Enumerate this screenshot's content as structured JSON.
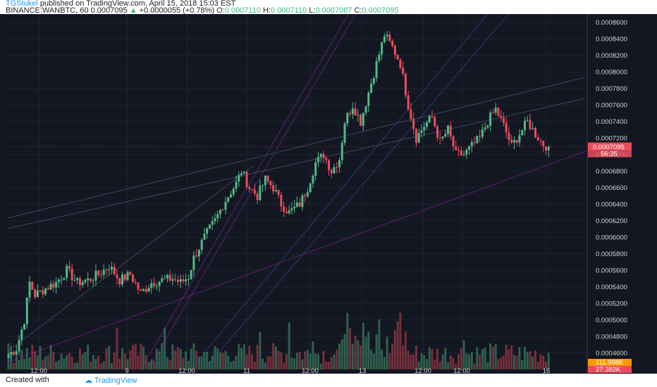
{
  "header": {
    "author": "TGStukel",
    "published_text": "published on TradingView.com, April 15, 2018 15:03 EST",
    "symbol": "BINANCE:WANBTC, 60",
    "last": "0.0007095",
    "change": "+0.0000055 (+0.78%)",
    "o_label": "O:",
    "o_value": "0.0007110",
    "h_label": "H:",
    "h_value": "0.0007110",
    "l_label": "L:",
    "l_value": "0.0007087",
    "c_label": "C:",
    "c_value": "0.0007095"
  },
  "footer": {
    "created_with": "Created with",
    "brand": "TradingView"
  },
  "colors": {
    "background": "#131722",
    "up": "#53b987",
    "down": "#eb4d5c",
    "price_tag": "#eb4d5c",
    "volume_tag": "#ff9800",
    "countdown_tag": "#eb4d5c",
    "trendline_magenta": "#9c27b0",
    "trendline_blue": "#3f51b5",
    "trendline_gray": "#5d6b8a"
  },
  "chart_data": {
    "type": "candlestick",
    "symbol": "BINANCE:WANBTC",
    "interval": "60",
    "y_tick_labels": [
      "0.0008600",
      "0.0008400",
      "0.0008200",
      "0.0008000",
      "0.0007800",
      "0.0007600",
      "0.0007400",
      "0.0007200",
      "0.0007000",
      "0.0006800",
      "0.0006600",
      "0.0006400",
      "0.0006200",
      "0.0006000",
      "0.0005800",
      "0.0005600",
      "0.0005400",
      "0.0005200",
      "0.0005000",
      "0.0004800",
      "0.0004600"
    ],
    "ylim": [
      0.00044,
      0.00087
    ],
    "x_tick_labels": [
      "12:00",
      "9",
      "12:00",
      "11",
      "12:00",
      "13",
      "12:00",
      "12:00",
      "16"
    ],
    "last_price_tag": "0.0007095",
    "countdown_tag": "56:35",
    "volume_tag": "111.998K",
    "volume_tag2": "27.382K",
    "anchors": [
      [
        0,
        0.000458
      ],
      [
        3,
        0.000465
      ],
      [
        6,
        0.0005
      ],
      [
        8,
        0.000545
      ],
      [
        10,
        0.00053
      ],
      [
        14,
        0.000538
      ],
      [
        18,
        0.000545
      ],
      [
        22,
        0.00056
      ],
      [
        26,
        0.000545
      ],
      [
        30,
        0.000548
      ],
      [
        34,
        0.000555
      ],
      [
        38,
        0.000565
      ],
      [
        42,
        0.000548
      ],
      [
        46,
        0.000555
      ],
      [
        50,
        0.000532
      ],
      [
        54,
        0.000545
      ],
      [
        58,
        0.000548
      ],
      [
        62,
        0.00055
      ],
      [
        65,
        0.000545
      ],
      [
        68,
        0.000552
      ],
      [
        70,
        0.000575
      ],
      [
        74,
        0.0006
      ],
      [
        78,
        0.00062
      ],
      [
        82,
        0.000645
      ],
      [
        86,
        0.000665
      ],
      [
        88,
        0.00068
      ],
      [
        91,
        0.00066
      ],
      [
        94,
        0.00065
      ],
      [
        97,
        0.00067
      ],
      [
        100,
        0.00066
      ],
      [
        103,
        0.00064
      ],
      [
        106,
        0.00063
      ],
      [
        110,
        0.00064
      ],
      [
        113,
        0.00066
      ],
      [
        116,
        0.00069
      ],
      [
        119,
        0.0007
      ],
      [
        122,
        0.00068
      ],
      [
        125,
        0.000695
      ],
      [
        127,
        0.00074
      ],
      [
        130,
        0.00076
      ],
      [
        133,
        0.00074
      ],
      [
        136,
        0.000775
      ],
      [
        139,
        0.00081
      ],
      [
        142,
        0.000845
      ],
      [
        145,
        0.00083
      ],
      [
        148,
        0.00081
      ],
      [
        151,
        0.00076
      ],
      [
        154,
        0.00072
      ],
      [
        157,
        0.000735
      ],
      [
        160,
        0.000745
      ],
      [
        163,
        0.000715
      ],
      [
        166,
        0.00073
      ],
      [
        169,
        0.0007
      ],
      [
        172,
        0.0007
      ],
      [
        175,
        0.00071
      ],
      [
        178,
        0.00072
      ],
      [
        181,
        0.00074
      ],
      [
        184,
        0.000755
      ],
      [
        187,
        0.000735
      ],
      [
        190,
        0.00071
      ],
      [
        193,
        0.000725
      ],
      [
        196,
        0.00074
      ],
      [
        199,
        0.000725
      ],
      [
        202,
        0.000712
      ],
      [
        204,
        0.0007095
      ]
    ]
  }
}
